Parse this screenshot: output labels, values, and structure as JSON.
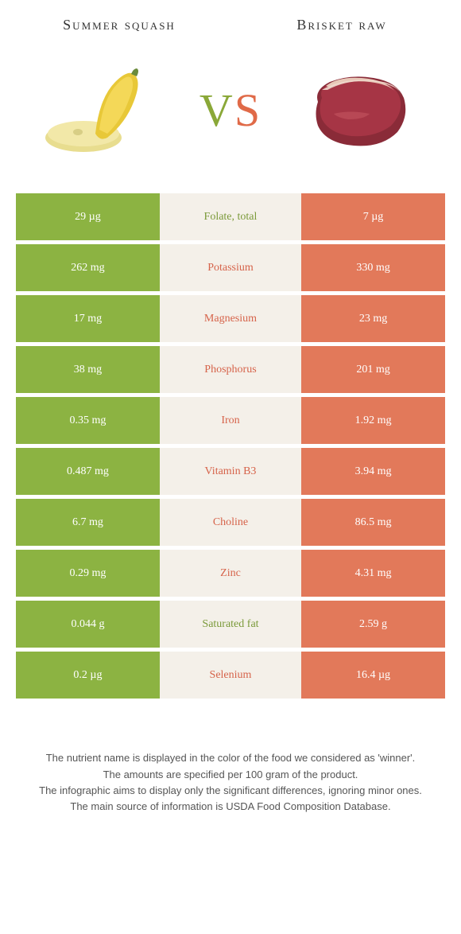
{
  "colors": {
    "green": "#8cb342",
    "orange": "#e2795a",
    "mid_bg": "#f4f0e9",
    "mid_green_text": "#7b9a3a",
    "mid_orange_text": "#d6634a",
    "text": "#333333",
    "footer_text": "#555555"
  },
  "header": {
    "left_title": "Summer squash",
    "right_title": "Brisket raw",
    "vs_v": "V",
    "vs_s": "S"
  },
  "rows": [
    {
      "left": "29 µg",
      "mid": "Folate, total",
      "right": "7 µg",
      "winner": "left"
    },
    {
      "left": "262 mg",
      "mid": "Potassium",
      "right": "330 mg",
      "winner": "right"
    },
    {
      "left": "17 mg",
      "mid": "Magnesium",
      "right": "23 mg",
      "winner": "right"
    },
    {
      "left": "38 mg",
      "mid": "Phosphorus",
      "right": "201 mg",
      "winner": "right"
    },
    {
      "left": "0.35 mg",
      "mid": "Iron",
      "right": "1.92 mg",
      "winner": "right"
    },
    {
      "left": "0.487 mg",
      "mid": "Vitamin B3",
      "right": "3.94 mg",
      "winner": "right"
    },
    {
      "left": "6.7 mg",
      "mid": "Choline",
      "right": "86.5 mg",
      "winner": "right"
    },
    {
      "left": "0.29 mg",
      "mid": "Zinc",
      "right": "4.31 mg",
      "winner": "right"
    },
    {
      "left": "0.044 g",
      "mid": "Saturated fat",
      "right": "2.59 g",
      "winner": "left"
    },
    {
      "left": "0.2 µg",
      "mid": "Selenium",
      "right": "16.4 µg",
      "winner": "right"
    }
  ],
  "footer": {
    "line1": "The nutrient name is displayed in the color of the food we considered as 'winner'.",
    "line2": "The amounts are specified per 100 gram of the product.",
    "line3": "The infographic aims to display only the significant differences, ignoring minor ones.",
    "line4": "The main source of information is USDA Food Composition Database."
  }
}
